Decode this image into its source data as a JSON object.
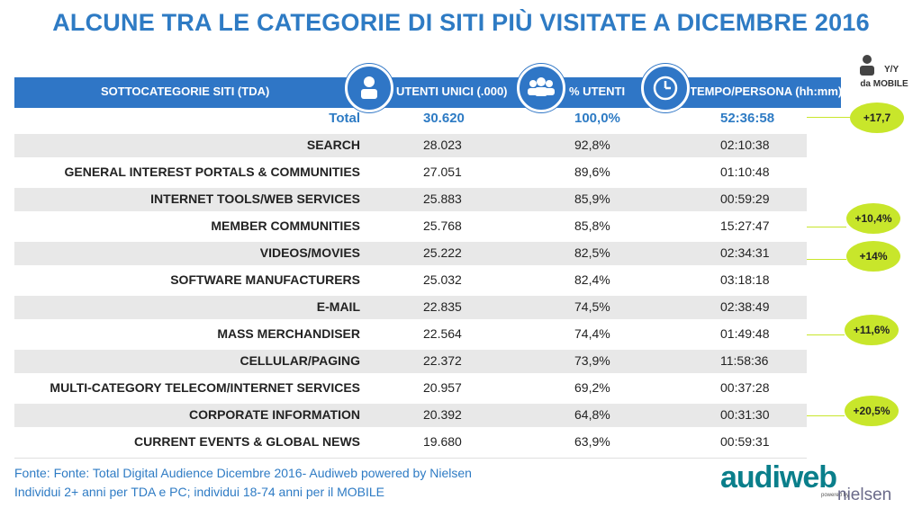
{
  "title": "ALCUNE TRA LE CATEGORIE DI SITI PIÙ VISITATE A DICEMBRE 2016",
  "header": {
    "col_category": "SOTTOCATEGORIE SITI  (TDA)",
    "col_users": "UTENTI UNICI (.000)",
    "col_pct": "% UTENTI",
    "col_time": "TEMPO/PERSONA (hh:mm)",
    "mobile_line1": "Y/Y",
    "mobile_line2": "da MOBILE"
  },
  "total": {
    "label": "Total",
    "users": "30.620",
    "pct": "100,0%",
    "time": "52:36:58"
  },
  "rows": [
    {
      "category": "SEARCH",
      "users": "28.023",
      "pct": "92,8%",
      "time": "02:10:38"
    },
    {
      "category": "GENERAL INTEREST PORTALS & COMMUNITIES",
      "users": "27.051",
      "pct": "89,6%",
      "time": "01:10:48"
    },
    {
      "category": "INTERNET TOOLS/WEB SERVICES",
      "users": "25.883",
      "pct": "85,9%",
      "time": "00:59:29"
    },
    {
      "category": "MEMBER COMMUNITIES",
      "users": "25.768",
      "pct": "85,8%",
      "time": "15:27:47"
    },
    {
      "category": "VIDEOS/MOVIES",
      "users": "25.222",
      "pct": "82,5%",
      "time": "02:34:31"
    },
    {
      "category": "SOFTWARE MANUFACTURERS",
      "users": "25.032",
      "pct": "82,4%",
      "time": "03:18:18"
    },
    {
      "category": "E-MAIL",
      "users": "22.835",
      "pct": "74,5%",
      "time": "02:38:49"
    },
    {
      "category": "MASS MERCHANDISER",
      "users": "22.564",
      "pct": "74,4%",
      "time": "01:49:48"
    },
    {
      "category": "CELLULAR/PAGING",
      "users": "22.372",
      "pct": "73,9%",
      "time": "11:58:36"
    },
    {
      "category": "MULTI-CATEGORY TELECOM/INTERNET SERVICES",
      "users": "20.957",
      "pct": "69,2%",
      "time": "00:37:28"
    },
    {
      "category": "CORPORATE INFORMATION",
      "users": "20.392",
      "pct": "64,8%",
      "time": "00:31:30"
    },
    {
      "category": "CURRENT EVENTS & GLOBAL NEWS",
      "users": "19.680",
      "pct": "63,9%",
      "time": "00:59:31"
    }
  ],
  "badges": {
    "total": "+17,7",
    "member_communities": "+10,4%",
    "videos_movies": "+14%",
    "mass_merchandiser": "+11,6%",
    "corporate_information": "+20,5%"
  },
  "colors": {
    "accent": "#2e7bc4",
    "header_bar": "#2f76c6",
    "badge": "#c8e62b",
    "logo": "#0a7f8b"
  },
  "footer": {
    "line1": "Fonte: Fonte: Total Digital Audience Dicembre 2016- Audiweb powered by Nielsen",
    "line2": "Individui 2+ anni per TDA e PC; individui 18-74 anni per il MOBILE"
  },
  "logo": {
    "brand": "audiweb",
    "powered": "powered by",
    "nielsen": "nielsen"
  },
  "icons": {
    "users": "person-icon",
    "pct": "group-icon",
    "time": "clock-icon",
    "mobile": "person-icon"
  }
}
